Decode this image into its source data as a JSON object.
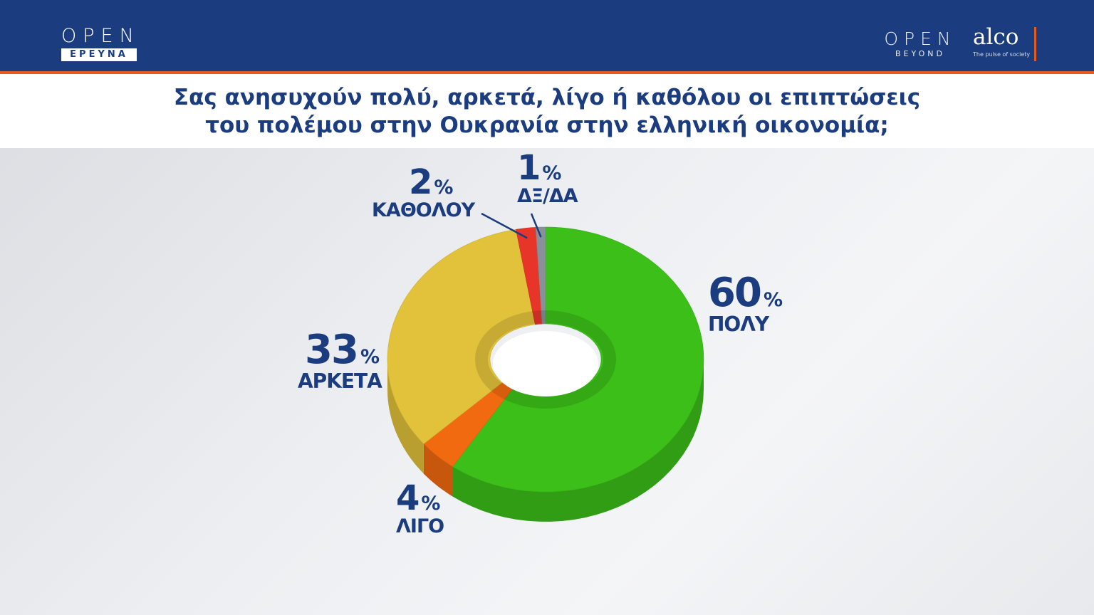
{
  "header": {
    "left_logo": {
      "word": "OPEN",
      "sub": "ΕΡΕΥΝΑ"
    },
    "right_logo_1": {
      "word": "OPEN",
      "sub": "BEYOND"
    },
    "right_logo_2": {
      "word": "alco",
      "tagline": "The pulse of society"
    }
  },
  "question": {
    "line1": "Σας ανησυχούν πολύ, αρκετά, λίγο ή καθόλου οι επιπτώσεις",
    "line2": "του πολέμου στην Ουκρανία στην ελληνική οικονομία;"
  },
  "chart_data": {
    "type": "pie",
    "style": "3d-donut",
    "title": "Σας ανησυχούν πολύ, αρκετά, λίγο ή καθόλου οι επιπτώσεις του πολέμου στην Ουκρανία στην ελληνική οικονομία;",
    "unit": "%",
    "slices": [
      {
        "label": "ΠΟΛΥ",
        "value": 60,
        "color": "#3cc019"
      },
      {
        "label": "ΛΙΓΟ",
        "value": 4,
        "color": "#f26a10"
      },
      {
        "label": "ΑΡΚΕΤΑ",
        "value": 33,
        "color": "#e2c23b"
      },
      {
        "label": "ΚΑΘΟΛΟΥ",
        "value": 2,
        "color": "#e8352a"
      },
      {
        "label": "ΔΞ/ΔΑ",
        "value": 1,
        "color": "#8a9099"
      }
    ]
  },
  "labels": {
    "poly": {
      "value": "60",
      "pct": "%",
      "name": "ΠΟΛΥ"
    },
    "arketa": {
      "value": "33",
      "pct": "%",
      "name": "ΑΡΚΕΤΑ"
    },
    "ligo": {
      "value": "4",
      "pct": "%",
      "name": "ΛΙΓΟ"
    },
    "katholou": {
      "value": "2",
      "pct": "%",
      "name": "ΚΑΘΟΛΟΥ"
    },
    "dxda": {
      "value": "1",
      "pct": "%",
      "name": "ΔΞ/ΔΑ"
    }
  }
}
